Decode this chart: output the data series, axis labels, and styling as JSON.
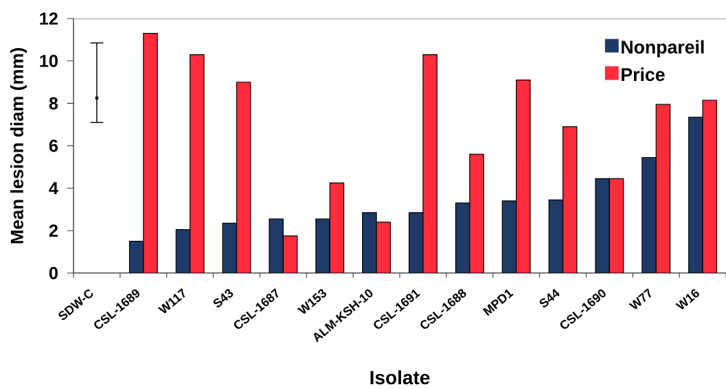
{
  "chart_data": {
    "type": "bar",
    "xlabel": "Isolate",
    "ylabel": "Mean lesion diam (mm)",
    "categories": [
      "SDW-C",
      "CSL-1689",
      "W117",
      "S43",
      "CSL-1687",
      "W153",
      "ALM-KSH-10",
      "CSL-1691",
      "CSL-1688",
      "MPD1",
      "S44",
      "CSL-1690",
      "W77",
      "W16"
    ],
    "series": [
      {
        "name": "Nonpareil",
        "color": "#1f3a68",
        "values": [
          null,
          1.5,
          2.05,
          2.35,
          2.55,
          2.55,
          2.85,
          2.85,
          3.3,
          3.4,
          3.45,
          4.45,
          5.45,
          7.35
        ]
      },
      {
        "name": "Price",
        "color": "#ff2d3c",
        "values": [
          null,
          11.3,
          10.3,
          9.0,
          1.75,
          4.25,
          2.4,
          10.3,
          5.6,
          9.1,
          6.9,
          4.45,
          7.95,
          8.15
        ]
      },
      {
        "type": "scatter",
        "color": "#000000",
        "marker": "square",
        "values": [
          8.25,
          null,
          null,
          null,
          null,
          null,
          null,
          null,
          null,
          null,
          null,
          null,
          null,
          null
        ],
        "errors": [
          [
            7.1,
            10.85
          ],
          null,
          null,
          null,
          null,
          null,
          null,
          null,
          null,
          null,
          null,
          null,
          null,
          null
        ]
      }
    ],
    "ylim": [
      0,
      12
    ],
    "yticks": [
      0,
      2,
      4,
      6,
      8,
      10,
      12
    ],
    "legend": "top right"
  }
}
